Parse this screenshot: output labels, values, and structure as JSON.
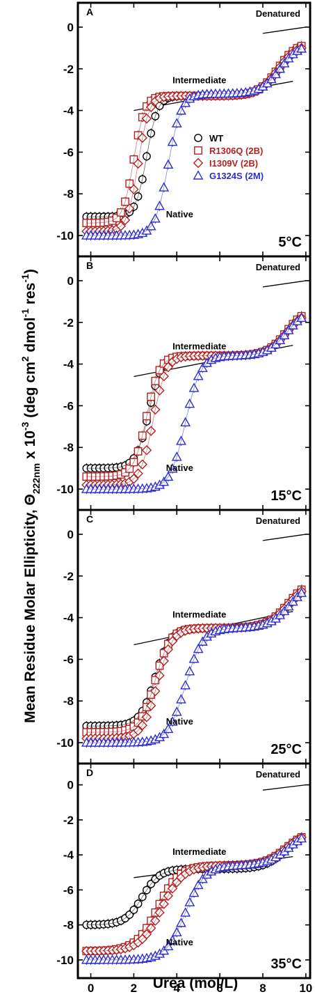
{
  "chart_data": {
    "type": "scatter",
    "xlabel": "Urea (mol/L)",
    "ylabel": {
      "main": "Mean Residue Molar Ellipticity, Θ",
      "sub": "222nm",
      "mid": " x 10",
      "exp": "-3",
      "unit1": " (deg cm",
      "unit1_exp": "2",
      "unit2": " dmol",
      "unit2_exp": "-1",
      "unit3": " res",
      "unit3_exp": "-1",
      "unit4": ")"
    },
    "xlim": [
      -0.6,
      10.2
    ],
    "ylim": [
      -10.8,
      0.9
    ],
    "xticks": [
      0,
      2,
      4,
      6,
      8,
      10
    ],
    "yticks": [
      0,
      -2,
      -4,
      -6,
      -8,
      -10
    ],
    "legend": {
      "placement": "inside panel A, center-right",
      "entries": [
        {
          "label": "WT",
          "color": "#000000",
          "marker": "circle"
        },
        {
          "label": "R1306Q (2B)",
          "color": "#b22222",
          "marker": "square"
        },
        {
          "label": "I1309V (2B)",
          "color": "#b22222",
          "marker": "diamond"
        },
        {
          "label": "G1324S (2M)",
          "color": "#2d2dd0",
          "marker": "triangle"
        }
      ]
    },
    "series_params": [
      {
        "name": "WT",
        "color": "#000000",
        "marker": "circle"
      },
      {
        "name": "R1306Q (2B)",
        "color": "#b22222",
        "marker": "square"
      },
      {
        "name": "I1309V (2B)",
        "color": "#b22222",
        "marker": "diamond"
      },
      {
        "name": "G1324S (2M)",
        "color": "#2d2dd0",
        "marker": "triangle"
      }
    ],
    "panels": [
      {
        "letter": "A",
        "temperature": "5°C",
        "annotations": {
          "denatured": "Denatured",
          "intermediate": "Intermediate",
          "native": "Native"
        },
        "baselines": {
          "denatured": [
            [
              8.0,
              -0.3
            ],
            [
              10.0,
              0.0
            ]
          ],
          "intermediate": [
            [
              2.0,
              -4.0
            ],
            [
              9.4,
              -2.6
            ]
          ]
        },
        "series": [
          {
            "name": "WT",
            "native": -9.1,
            "mid1": 2.6,
            "w1": 0.25,
            "plateau": -3.3,
            "mid2": 8.7,
            "w2": 0.45,
            "denat": -0.7
          },
          {
            "name": "R1306Q (2B)",
            "native": -9.4,
            "mid1": 2.0,
            "w1": 0.25,
            "plateau": -3.3,
            "mid2": 8.7,
            "w2": 0.45,
            "denat": -0.7
          },
          {
            "name": "I1309V (2B)",
            "native": -9.8,
            "mid1": 2.2,
            "w1": 0.25,
            "plateau": -3.3,
            "mid2": 8.7,
            "w2": 0.45,
            "denat": -0.8
          },
          {
            "name": "G1324S (2M)",
            "native": -10.0,
            "mid1": 3.6,
            "w1": 0.3,
            "plateau": -3.2,
            "mid2": 8.8,
            "w2": 0.45,
            "denat": -0.8
          }
        ]
      },
      {
        "letter": "B",
        "temperature": "15°C",
        "annotations": {
          "denatured": "Denatured",
          "intermediate": "Intermediate",
          "native": "Native"
        },
        "baselines": {
          "denatured": [
            [
              8.0,
              -0.3
            ],
            [
              10.0,
              0.0
            ]
          ],
          "intermediate": [
            [
              2.0,
              -4.6
            ],
            [
              9.4,
              -3.1
            ]
          ]
        },
        "series": [
          {
            "name": "WT",
            "native": -9.0,
            "mid1": 2.7,
            "w1": 0.3,
            "plateau": -3.6,
            "mid2": 9.1,
            "w2": 0.45,
            "denat": -1.3
          },
          {
            "name": "R1306Q (2B)",
            "native": -9.4,
            "mid1": 2.6,
            "w1": 0.3,
            "plateau": -3.6,
            "mid2": 9.1,
            "w2": 0.45,
            "denat": -1.3
          },
          {
            "name": "I1309V (2B)",
            "native": -9.8,
            "mid1": 2.9,
            "w1": 0.3,
            "plateau": -3.6,
            "mid2": 9.1,
            "w2": 0.45,
            "denat": -1.4
          },
          {
            "name": "G1324S (2M)",
            "native": -10.0,
            "mid1": 4.4,
            "w1": 0.35,
            "plateau": -3.6,
            "mid2": 9.1,
            "w2": 0.45,
            "denat": -1.4
          }
        ]
      },
      {
        "letter": "C",
        "temperature": "25°C",
        "annotations": {
          "denatured": "Denatured",
          "intermediate": "Intermediate",
          "native": "Native"
        },
        "baselines": {
          "denatured": [
            [
              8.0,
              -0.3
            ],
            [
              10.0,
              0.0
            ]
          ],
          "intermediate": [
            [
              2.0,
              -5.3
            ],
            [
              9.4,
              -3.7
            ]
          ]
        },
        "series": [
          {
            "name": "WT",
            "native": -9.2,
            "mid1": 3.0,
            "w1": 0.35,
            "plateau": -4.5,
            "mid2": 9.2,
            "w2": 0.5,
            "denat": -2.1
          },
          {
            "name": "R1306Q (2B)",
            "native": -9.5,
            "mid1": 3.0,
            "w1": 0.35,
            "plateau": -4.5,
            "mid2": 9.2,
            "w2": 0.5,
            "denat": -2.1
          },
          {
            "name": "I1309V (2B)",
            "native": -9.8,
            "mid1": 3.1,
            "w1": 0.35,
            "plateau": -4.5,
            "mid2": 9.2,
            "w2": 0.5,
            "denat": -2.2
          },
          {
            "name": "G1324S (2M)",
            "native": -10.0,
            "mid1": 4.4,
            "w1": 0.4,
            "plateau": -4.5,
            "mid2": 9.3,
            "w2": 0.5,
            "denat": -2.2
          }
        ]
      },
      {
        "letter": "D",
        "temperature": "35°C",
        "annotations": {
          "denatured": "Denatured",
          "intermediate": "Intermediate",
          "native": "Native"
        },
        "baselines": {
          "denatured": [
            [
              8.0,
              -0.3
            ],
            [
              10.0,
              0.0
            ]
          ],
          "intermediate": [
            [
              2.0,
              -5.3
            ],
            [
              9.4,
              -4.1
            ]
          ]
        },
        "series": [
          {
            "name": "WT",
            "native": -8.0,
            "mid1": 2.4,
            "w1": 0.4,
            "plateau": -4.8,
            "mid2": 9.1,
            "w2": 0.5,
            "denat": -2.6
          },
          {
            "name": "R1306Q (2B)",
            "native": -9.5,
            "mid1": 3.1,
            "w1": 0.5,
            "plateau": -4.6,
            "mid2": 9.1,
            "w2": 0.5,
            "denat": -2.6
          },
          {
            "name": "I1309V (2B)",
            "native": -9.5,
            "mid1": 3.3,
            "w1": 0.5,
            "plateau": -4.6,
            "mid2": 9.1,
            "w2": 0.5,
            "denat": -2.6
          },
          {
            "name": "G1324S (2M)",
            "native": -10.0,
            "mid1": 4.4,
            "w1": 0.45,
            "plateau": -4.6,
            "mid2": 9.2,
            "w2": 0.5,
            "denat": -2.6
          }
        ]
      }
    ]
  }
}
